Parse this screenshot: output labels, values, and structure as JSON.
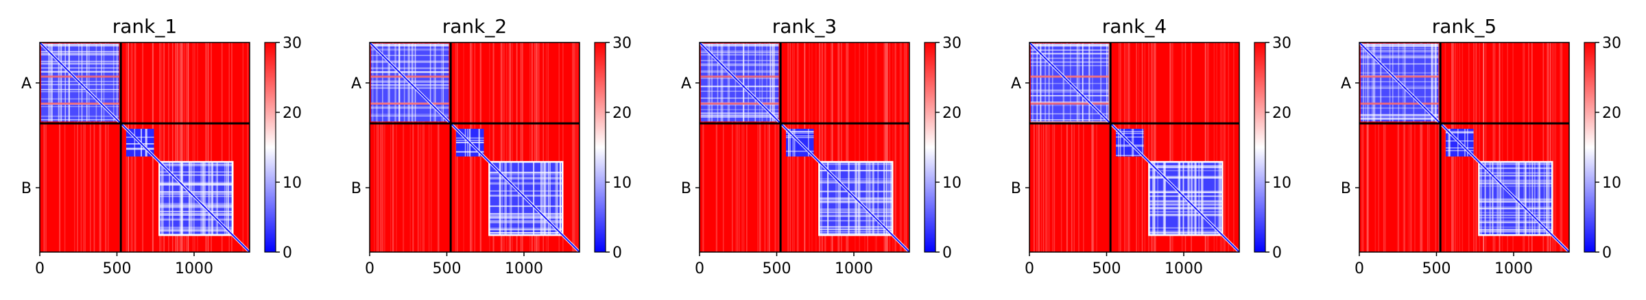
{
  "chart_data": [
    {
      "type": "heatmap",
      "title": "rank_1",
      "xlabel": "",
      "ylabel": "",
      "xticks": [
        0,
        500,
        1000
      ],
      "xtick_labels": [
        "0",
        "500",
        "1000"
      ],
      "xlim": [
        0,
        1360
      ],
      "chains": [
        {
          "label": "A",
          "start": 0,
          "end": 525
        },
        {
          "label": "B",
          "start": 525,
          "end": 1360
        }
      ],
      "colorbar": {
        "min": 0,
        "max": 30,
        "ticks": [
          0,
          10,
          20,
          30
        ],
        "tick_labels": [
          "0",
          "10",
          "20",
          "30"
        ]
      },
      "colormap": [
        "#0000ff",
        "#ffffff",
        "#ff0000"
      ]
    },
    {
      "type": "heatmap",
      "title": "rank_2",
      "xlabel": "",
      "ylabel": "",
      "xticks": [
        0,
        500,
        1000
      ],
      "xtick_labels": [
        "0",
        "500",
        "1000"
      ],
      "xlim": [
        0,
        1360
      ],
      "chains": [
        {
          "label": "A",
          "start": 0,
          "end": 525
        },
        {
          "label": "B",
          "start": 525,
          "end": 1360
        }
      ],
      "colorbar": {
        "min": 0,
        "max": 30,
        "ticks": [
          0,
          10,
          20,
          30
        ],
        "tick_labels": [
          "0",
          "10",
          "20",
          "30"
        ]
      },
      "colormap": [
        "#0000ff",
        "#ffffff",
        "#ff0000"
      ]
    },
    {
      "type": "heatmap",
      "title": "rank_3",
      "xlabel": "",
      "ylabel": "",
      "xticks": [
        0,
        500,
        1000
      ],
      "xtick_labels": [
        "0",
        "500",
        "1000"
      ],
      "xlim": [
        0,
        1360
      ],
      "chains": [
        {
          "label": "A",
          "start": 0,
          "end": 525
        },
        {
          "label": "B",
          "start": 525,
          "end": 1360
        }
      ],
      "colorbar": {
        "min": 0,
        "max": 30,
        "ticks": [
          0,
          10,
          20,
          30
        ],
        "tick_labels": [
          "0",
          "10",
          "20",
          "30"
        ]
      },
      "colormap": [
        "#0000ff",
        "#ffffff",
        "#ff0000"
      ]
    },
    {
      "type": "heatmap",
      "title": "rank_4",
      "xlabel": "",
      "ylabel": "",
      "xticks": [
        0,
        500,
        1000
      ],
      "xtick_labels": [
        "0",
        "500",
        "1000"
      ],
      "xlim": [
        0,
        1360
      ],
      "chains": [
        {
          "label": "A",
          "start": 0,
          "end": 525
        },
        {
          "label": "B",
          "start": 525,
          "end": 1360
        }
      ],
      "colorbar": {
        "min": 0,
        "max": 30,
        "ticks": [
          0,
          10,
          20,
          30
        ],
        "tick_labels": [
          "0",
          "10",
          "20",
          "30"
        ]
      },
      "colormap": [
        "#0000ff",
        "#ffffff",
        "#ff0000"
      ]
    },
    {
      "type": "heatmap",
      "title": "rank_5",
      "xlabel": "",
      "ylabel": "",
      "xticks": [
        0,
        500,
        1000
      ],
      "xtick_labels": [
        "0",
        "500",
        "1000"
      ],
      "xlim": [
        0,
        1360
      ],
      "chains": [
        {
          "label": "A",
          "start": 0,
          "end": 525
        },
        {
          "label": "B",
          "start": 525,
          "end": 1360
        }
      ],
      "colorbar": {
        "min": 0,
        "max": 30,
        "ticks": [
          0,
          10,
          20,
          30
        ],
        "tick_labels": [
          "0",
          "10",
          "20",
          "30"
        ]
      },
      "colormap": [
        "#0000ff",
        "#ffffff",
        "#ff0000"
      ]
    }
  ]
}
